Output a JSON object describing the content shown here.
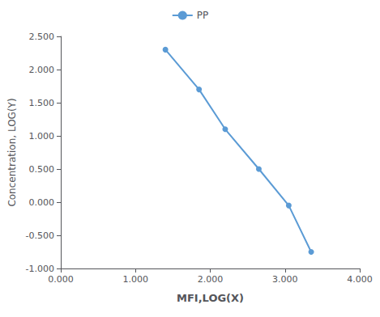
{
  "chart_data": {
    "type": "line",
    "x": [
      1.4,
      1.85,
      2.2,
      2.65,
      3.05,
      3.35
    ],
    "series": [
      {
        "name": "PP",
        "color": "#5B9BD5",
        "marker": "circle",
        "values": [
          2.3,
          1.7,
          1.1,
          0.5,
          -0.05,
          -0.75
        ]
      }
    ],
    "xlabel": "MFI,LOG(X)",
    "ylabel": "Concentration, LOG(Y)",
    "xlim": [
      0.0,
      4.0
    ],
    "ylim": [
      -1.0,
      2.5
    ],
    "xticks": [
      {
        "value": 0.0,
        "label": "0.000"
      },
      {
        "value": 1.0,
        "label": "1.000"
      },
      {
        "value": 2.0,
        "label": "2.000"
      },
      {
        "value": 3.0,
        "label": "3.000"
      },
      {
        "value": 4.0,
        "label": "4.000"
      }
    ],
    "yticks": [
      {
        "value": -1.0,
        "label": "-1.000"
      },
      {
        "value": -0.5,
        "label": "-0.500"
      },
      {
        "value": 0.0,
        "label": "0.000"
      },
      {
        "value": 0.5,
        "label": "0.500"
      },
      {
        "value": 1.0,
        "label": "1.000"
      },
      {
        "value": 1.5,
        "label": "1.500"
      },
      {
        "value": 2.0,
        "label": "2.000"
      },
      {
        "value": 2.5,
        "label": "2.500"
      }
    ],
    "grid": false,
    "legend": "top"
  }
}
